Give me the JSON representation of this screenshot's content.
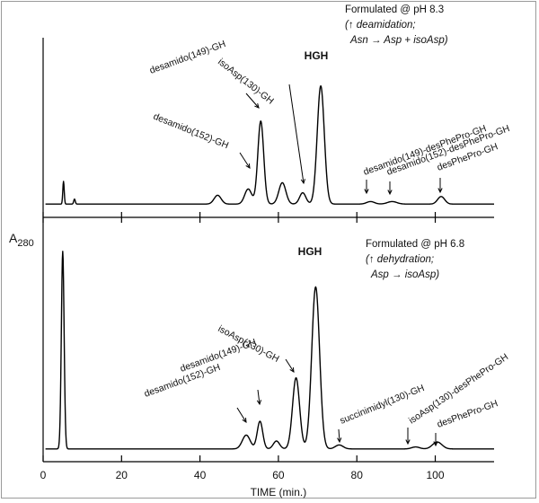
{
  "chart_data": [
    {
      "type": "line",
      "panel": "top",
      "title": "",
      "condition": [
        "Formulated @ pH 8.3",
        "deamidation;",
        "Asn → Asp + isoAsp)"
      ],
      "xlabel": "TIME (min.)",
      "ylabel": "A280",
      "xlim": [
        0,
        115
      ],
      "baseline": 0.02,
      "peaks": [
        {
          "t": 5.2,
          "h": 0.18,
          "w": 0.18
        },
        {
          "t": 8.0,
          "h": 0.04,
          "w": 0.2
        },
        {
          "t": 44.5,
          "h": 0.07,
          "w": 0.9
        },
        {
          "t": 52.3,
          "h": 0.12,
          "w": 0.9
        },
        {
          "t": 55.5,
          "h": 0.66,
          "w": 0.75
        },
        {
          "t": 61.0,
          "h": 0.17,
          "w": 0.9
        },
        {
          "t": 66.2,
          "h": 0.09,
          "w": 0.8
        },
        {
          "t": 70.8,
          "h": 0.94,
          "w": 0.9
        },
        {
          "t": 83.5,
          "h": 0.02,
          "w": 1.0
        },
        {
          "t": 89.0,
          "h": 0.02,
          "w": 1.2
        },
        {
          "t": 101.5,
          "h": 0.06,
          "w": 0.9
        }
      ],
      "annotations": [
        {
          "text": "HGH",
          "t": 70.8
        },
        {
          "text": "isoAsp(130)-GH",
          "t": 66.2
        },
        {
          "text": "desamido(149)-GH",
          "t": 55.5
        },
        {
          "text": "desamido(152)-GH",
          "t": 52.3
        },
        {
          "text": "desamido(149)-desPhePro-GH",
          "t": 83.5
        },
        {
          "text": "desamido(152)-desPhePro-GH",
          "t": 89.0
        },
        {
          "text": "desPhePro-GH",
          "t": 101.5
        }
      ]
    },
    {
      "type": "line",
      "panel": "bottom",
      "title": "",
      "condition": [
        "Formulated @ pH 6.8",
        "dehydration;",
        "Asp → isoAsp)"
      ],
      "xlabel": "TIME (min.)",
      "ylabel": "A280",
      "xlim": [
        0,
        115
      ],
      "xticks": [
        0,
        20,
        40,
        60,
        80,
        100
      ],
      "baseline": 0.01,
      "peaks": [
        {
          "t": 5.0,
          "h": 1.0,
          "w": 0.35
        },
        {
          "t": 51.8,
          "h": 0.07,
          "w": 1.0
        },
        {
          "t": 55.3,
          "h": 0.14,
          "w": 0.7
        },
        {
          "t": 59.5,
          "h": 0.04,
          "w": 0.8
        },
        {
          "t": 64.5,
          "h": 0.36,
          "w": 0.9
        },
        {
          "t": 69.5,
          "h": 0.82,
          "w": 1.0
        },
        {
          "t": 75.5,
          "h": 0.02,
          "w": 1.0
        },
        {
          "t": 95.0,
          "h": 0.01,
          "w": 1.0
        },
        {
          "t": 100.5,
          "h": 0.035,
          "w": 1.2
        }
      ],
      "annotations": [
        {
          "text": "HGH",
          "t": 69.5
        },
        {
          "text": "isoAsp(130)-GH",
          "t": 64.5
        },
        {
          "text": "desamido(149)-GH",
          "t": 55.3
        },
        {
          "text": "desamido(152)-GH",
          "t": 51.8
        },
        {
          "text": "succinimidyl(130)-GH",
          "t": 75.5
        },
        {
          "text": "isoAsp(130)-desPhePro-GH",
          "t": 95.0
        },
        {
          "text": "desPhePro-GH",
          "t": 100.5
        }
      ]
    }
  ]
}
